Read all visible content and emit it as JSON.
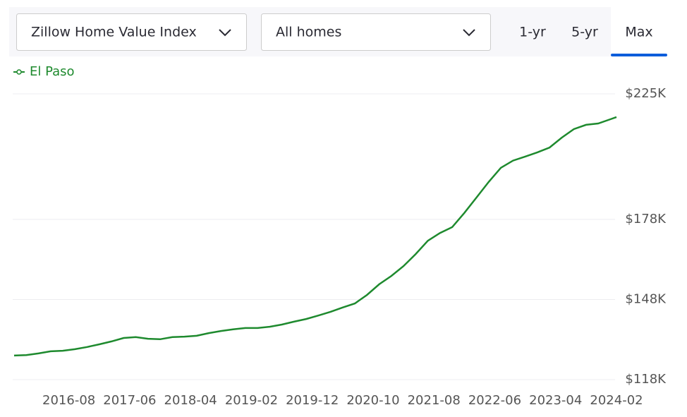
{
  "controls": {
    "metric": "Zillow Home Value Index",
    "home_type": "All homes",
    "ranges": [
      "1-yr",
      "5-yr",
      "Max"
    ]
  },
  "chart_data": {
    "type": "line",
    "x": [
      "2015-11",
      "2016-01",
      "2016-03",
      "2016-05",
      "2016-07",
      "2016-09",
      "2016-11",
      "2017-01",
      "2017-03",
      "2017-05",
      "2017-07",
      "2017-09",
      "2017-11",
      "2018-01",
      "2018-03",
      "2018-05",
      "2018-07",
      "2018-09",
      "2018-11",
      "2019-01",
      "2019-03",
      "2019-05",
      "2019-07",
      "2019-09",
      "2019-11",
      "2020-01",
      "2020-03",
      "2020-05",
      "2020-07",
      "2020-09",
      "2020-11",
      "2021-01",
      "2021-03",
      "2021-05",
      "2021-07",
      "2021-09",
      "2021-11",
      "2022-01",
      "2022-03",
      "2022-05",
      "2022-07",
      "2022-09",
      "2022-11",
      "2023-01",
      "2023-03",
      "2023-05",
      "2023-07",
      "2023-09",
      "2023-11",
      "2024-01",
      "2024-02"
    ],
    "series": [
      {
        "name": "El Paso",
        "color": "#1e8a2e",
        "values": [
          127000,
          127200,
          127800,
          128600,
          128800,
          129400,
          130200,
          131200,
          132300,
          133600,
          133900,
          133300,
          133100,
          133900,
          134100,
          134400,
          135400,
          136200,
          136800,
          137300,
          137300,
          137800,
          138600,
          139700,
          140700,
          142000,
          143400,
          145000,
          146500,
          149700,
          153700,
          156800,
          160500,
          165000,
          170000,
          172900,
          175100,
          180400,
          186200,
          192000,
          197300,
          200000,
          201500,
          203100,
          204900,
          208600,
          211800,
          213400,
          213900,
          215500,
          216300
        ]
      }
    ],
    "xlim": [
      "2015-11",
      "2024-02"
    ],
    "xticks": [
      "2016-08",
      "2017-06",
      "2018-04",
      "2019-02",
      "2019-12",
      "2020-10",
      "2021-08",
      "2022-06",
      "2023-04",
      "2024-02"
    ],
    "ylim": [
      118000,
      225000
    ],
    "yticks": [
      {
        "value": 118000,
        "label": "$118K"
      },
      {
        "value": 148000,
        "label": "$148K"
      },
      {
        "value": 178000,
        "label": "$178K"
      },
      {
        "value": 225000,
        "label": "$225K"
      }
    ],
    "grid": true
  }
}
